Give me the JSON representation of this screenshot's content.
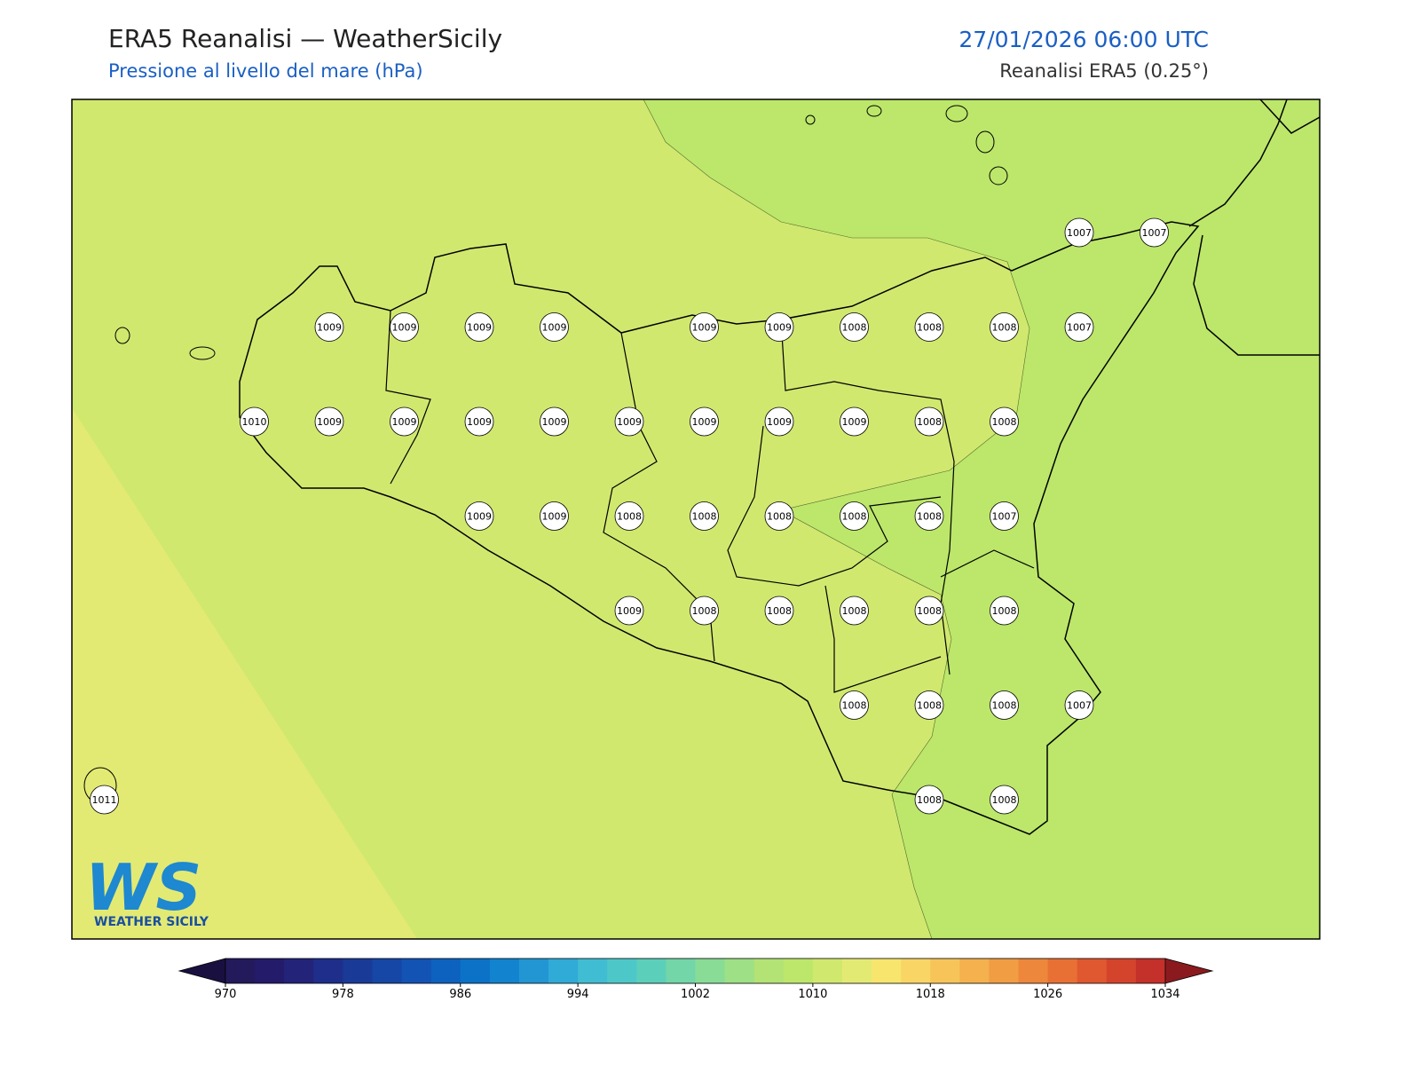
{
  "header": {
    "title": "ERA5 Reanalisi — WeatherSicily",
    "subtitle": "Pressione al livello del mare (hPa)",
    "date": "27/01/2026 06:00 UTC",
    "source": "Reanalisi ERA5 (0.25°)"
  },
  "pressure_labels": [
    1007,
    1007,
    1009,
    1009,
    1009,
    1009,
    1009,
    1009,
    1008,
    1008,
    1008,
    1007,
    1010,
    1009,
    1009,
    1009,
    1009,
    1009,
    1009,
    1009,
    1009,
    1008,
    1008,
    1009,
    1009,
    1008,
    1008,
    1008,
    1008,
    1008,
    1007,
    1009,
    1008,
    1008,
    1008,
    1008,
    1008,
    1008,
    1008,
    1008,
    1007,
    1011,
    1008,
    1008
  ],
  "colorbar": {
    "range": [
      970,
      1034
    ],
    "ticks": [
      970,
      978,
      986,
      994,
      1002,
      1010,
      1018,
      1026,
      1034
    ],
    "colors": [
      "#231a5c",
      "#241b6b",
      "#23237a",
      "#1e2e8a",
      "#1a3a98",
      "#1646a6",
      "#1253b3",
      "#0e62bf",
      "#0b72c8",
      "#1283cf",
      "#2196d3",
      "#30aad6",
      "#40bdd2",
      "#4ec7c8",
      "#5ccfba",
      "#72d6a8",
      "#88dc96",
      "#9ee085",
      "#b3e375",
      "#bce76a",
      "#d1e86f",
      "#e3ea74",
      "#f7e56e",
      "#f9d566",
      "#f7c459",
      "#f4b14e",
      "#f19d44",
      "#ed873b",
      "#e87034",
      "#e0582f",
      "#d4432c",
      "#c4302a"
    ],
    "under_color": "#1a1040",
    "over_color": "#8b1a1e"
  },
  "logo": {
    "mark": "WS",
    "text": "WEATHER SICILY"
  }
}
